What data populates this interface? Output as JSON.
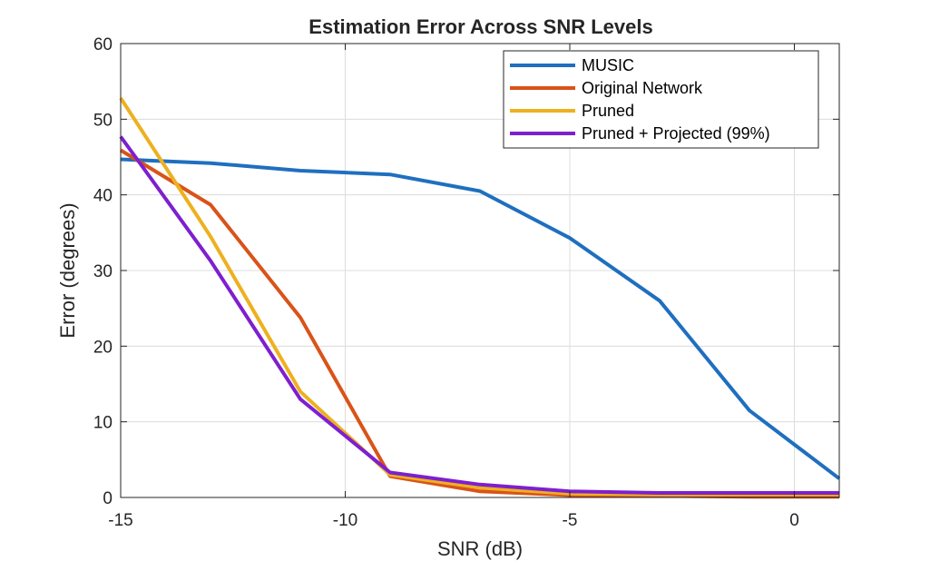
{
  "chart_data": {
    "type": "line",
    "title": "Estimation Error Across SNR Levels",
    "xlabel": "SNR (dB)",
    "ylabel": "Error (degrees)",
    "xlim": [
      -15,
      1
    ],
    "ylim": [
      0,
      60
    ],
    "x_ticks": [
      -15,
      -10,
      -5,
      0
    ],
    "y_ticks": [
      0,
      10,
      20,
      30,
      40,
      50,
      60
    ],
    "grid": true,
    "legend_position": "top-right",
    "x": [
      -15,
      -13,
      -11,
      -9,
      -7,
      -5,
      -3,
      -1,
      1
    ],
    "series": [
      {
        "name": "MUSIC",
        "color": "#1f6fbf",
        "values": [
          44.7,
          44.2,
          43.2,
          42.7,
          40.5,
          34.3,
          26.0,
          11.5,
          2.5
        ]
      },
      {
        "name": "Original Network",
        "color": "#d95319",
        "values": [
          45.9,
          38.7,
          23.8,
          2.8,
          0.8,
          0.3,
          0.2,
          0.1,
          0.1
        ]
      },
      {
        "name": "Pruned",
        "color": "#edb120",
        "values": [
          52.8,
          34.5,
          14.0,
          3.0,
          1.3,
          0.5,
          0.4,
          0.4,
          0.4
        ]
      },
      {
        "name": "Pruned + Projected (99%)",
        "color": "#7e1fcf",
        "values": [
          47.7,
          31.3,
          13.0,
          3.3,
          1.7,
          0.8,
          0.6,
          0.6,
          0.6
        ]
      }
    ]
  }
}
